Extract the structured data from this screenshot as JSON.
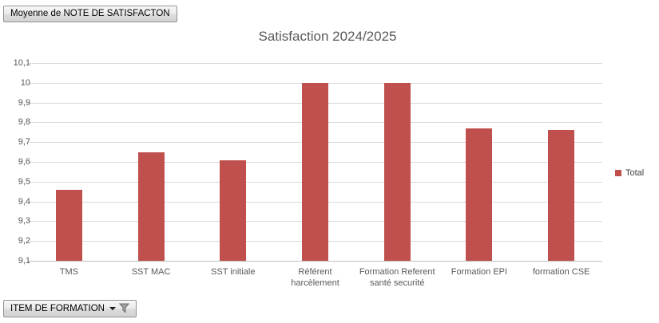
{
  "pivot_buttons": {
    "value_field": "Moyenne de NOTE DE SATISFACTON",
    "axis_field": "ITEM DE FORMATION",
    "filter_icon": "funnel-icon",
    "dropdown_icon": "chevron-down-icon"
  },
  "chart_data": {
    "type": "bar",
    "title": "Satisfaction 2024/2025",
    "categories": [
      "TMS",
      "SST MAC",
      "SST initiale",
      "Référent harcèlement",
      "Formation Referent santé securité",
      "Formation EPI",
      "formation CSE"
    ],
    "series": [
      {
        "name": "Total",
        "values": [
          9.46,
          9.65,
          9.61,
          10,
          10,
          9.77,
          9.76
        ]
      }
    ],
    "xlabel": "",
    "ylabel": "",
    "ylim": [
      9.1,
      10.1
    ],
    "ytick_step": 0.1,
    "ytick_labels": [
      "10,1",
      "10",
      "9,9",
      "9,8",
      "9,7",
      "9,6",
      "9,5",
      "9,4",
      "9,3",
      "9,2",
      "9,1"
    ],
    "grid": true,
    "legend_position": "right",
    "bar_color": "#C0504D"
  },
  "colors": {
    "bar": "#C0504D",
    "title_text": "#595959",
    "axis_text": "#595959",
    "gridline": "#d9d9d9",
    "axis_line": "#bfbfbf"
  }
}
